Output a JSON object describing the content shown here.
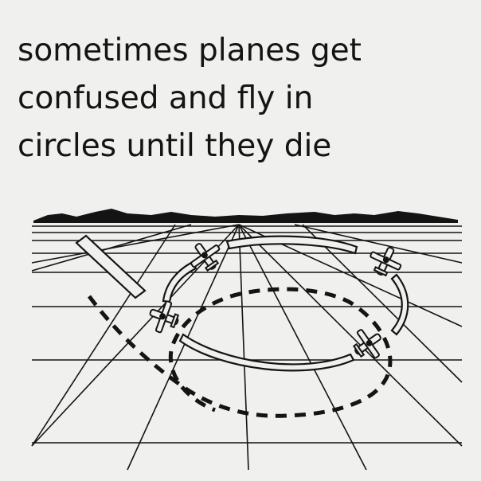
{
  "caption": {
    "lines": [
      "sometimes planes get",
      "confused and fly in",
      "circles until they die"
    ]
  },
  "illustration": {
    "subject": "airplane-circling-pattern",
    "colors": {
      "background": "#f0f0ee",
      "ink": "#141414"
    }
  }
}
